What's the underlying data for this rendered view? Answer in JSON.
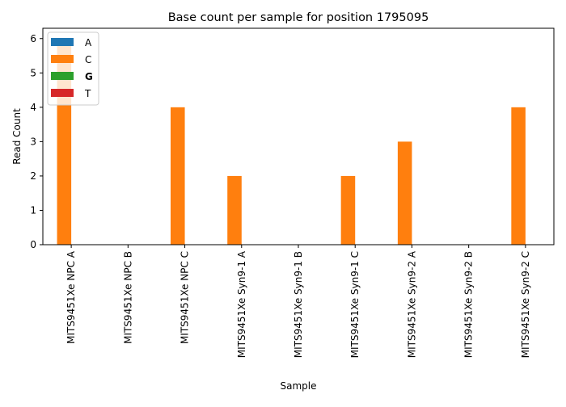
{
  "chart_data": {
    "type": "bar",
    "title": "Base count per sample for position 1795095",
    "xlabel": "Sample",
    "ylabel": "Read Count",
    "categories": [
      "MITS9451Xe NPC A",
      "MITS9451Xe NPC B",
      "MITS9451Xe NPC C",
      "MITS9451Xe Syn9-1 A",
      "MITS9451Xe Syn9-1 B",
      "MITS9451Xe Syn9-1 C",
      "MITS9451Xe Syn9-2 A",
      "MITS9451Xe Syn9-2 B",
      "MITS9451Xe Syn9-2 C"
    ],
    "series": [
      {
        "name": "A",
        "color": "#1f77b4",
        "values": [
          0,
          0,
          0,
          0,
          0,
          0,
          0,
          0,
          0
        ]
      },
      {
        "name": "C",
        "color": "#ff7f0e",
        "values": [
          6,
          0,
          4,
          2,
          0,
          2,
          3,
          0,
          4
        ]
      },
      {
        "name": "G",
        "color": "#2ca02c",
        "values": [
          0,
          0,
          0,
          0,
          0,
          0,
          0,
          0,
          0
        ]
      },
      {
        "name": "T",
        "color": "#d62728",
        "values": [
          0,
          0,
          0,
          0,
          0,
          0,
          0,
          0,
          0
        ]
      }
    ],
    "yticks": [
      "0",
      "1",
      "2",
      "3",
      "4",
      "5",
      "6"
    ],
    "ylim": [
      0,
      6.3
    ],
    "legend_position": "top-left",
    "grid": false
  }
}
